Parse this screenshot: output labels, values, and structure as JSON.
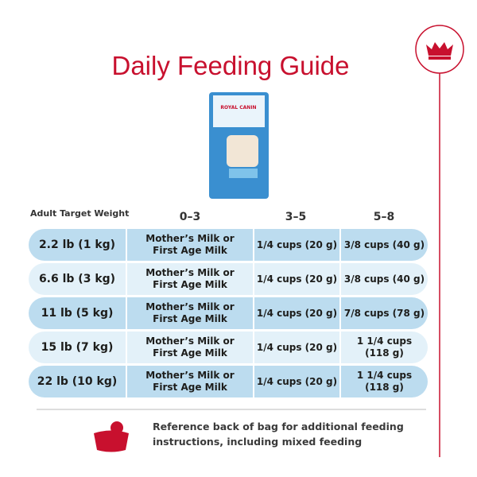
{
  "header": {
    "title": "Daily Feeding Guide"
  },
  "product": {
    "brand": "ROYAL CANIN"
  },
  "table": {
    "columns": [
      "Adult Target Weight",
      "0–3",
      "3–5",
      "5–8"
    ],
    "rows": [
      {
        "weight": "2.2 lb (1 kg)",
        "cells": [
          [
            "Mother’s Milk or",
            "First Age Milk"
          ],
          [
            "1/4 cups (20 g)"
          ],
          [
            "3/8 cups (40 g)"
          ]
        ]
      },
      {
        "weight": "6.6 lb (3 kg)",
        "cells": [
          [
            "Mother’s Milk or",
            "First Age Milk"
          ],
          [
            "1/4 cups (20 g)"
          ],
          [
            "3/8 cups (40 g)"
          ]
        ]
      },
      {
        "weight": "11 lb (5 kg)",
        "cells": [
          [
            "Mother’s Milk or",
            "First Age Milk"
          ],
          [
            "1/4 cups (20 g)"
          ],
          [
            "7/8 cups (78 g)"
          ]
        ]
      },
      {
        "weight": "15 lb (7 kg)",
        "cells": [
          [
            "Mother’s Milk or",
            "First Age Milk"
          ],
          [
            "1/4 cups (20 g)"
          ],
          [
            "1 1/4 cups",
            "(118 g)"
          ]
        ]
      },
      {
        "weight": "22 lb (10 kg)",
        "cells": [
          [
            "Mother’s Milk or",
            "First Age Milk"
          ],
          [
            "1/4 cups (20 g)"
          ],
          [
            "1 1/4 cups",
            "(118 g)"
          ]
        ]
      }
    ]
  },
  "note": {
    "lines": [
      "Reference back of bag for additional feeding",
      "instructions, including mixed feeding"
    ]
  }
}
